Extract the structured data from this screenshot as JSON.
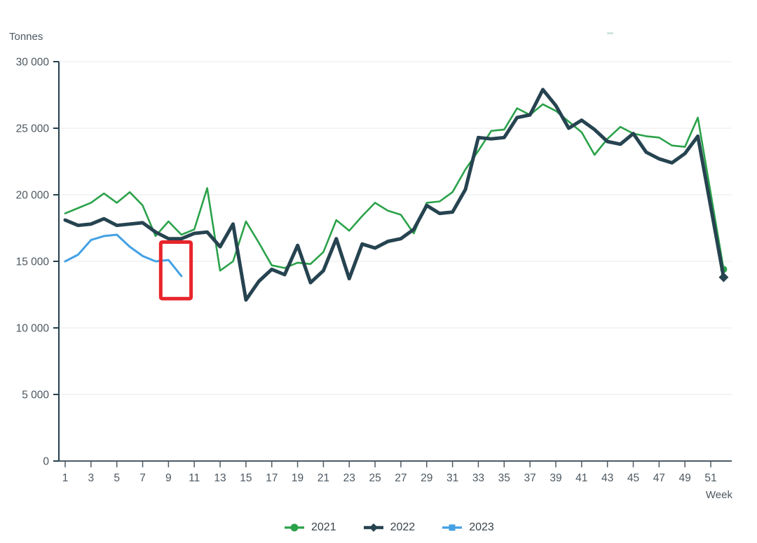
{
  "chart_data": {
    "type": "line",
    "title": "",
    "ylabel": "Tonnes",
    "xlabel": "Week",
    "ylim": [
      0,
      30000
    ],
    "yticks": [
      0,
      5000,
      10000,
      15000,
      20000,
      25000,
      30000
    ],
    "ytick_labels": [
      "0",
      "5 000",
      "10 000",
      "15 000",
      "20 000",
      "25 000",
      "30 000"
    ],
    "xticks": [
      1,
      3,
      5,
      7,
      9,
      11,
      13,
      15,
      17,
      19,
      21,
      23,
      25,
      27,
      29,
      31,
      33,
      35,
      37,
      39,
      41,
      43,
      45,
      47,
      49,
      51
    ],
    "x_range": [
      1,
      52
    ],
    "grid": true,
    "legend_position": "bottom",
    "colors": {
      "grid": "#e8e8e8",
      "y_axis": "#24404f",
      "x_axis": "#4d5a64",
      "tick_text": "#4c5760",
      "annotation": "#e8252b"
    },
    "series": [
      {
        "name": "2021",
        "color": "#2ba24a",
        "marker": "circle",
        "line_width": 2.6,
        "end_marker": true,
        "x_start": 1,
        "values": [
          18600,
          19000,
          19400,
          20100,
          19400,
          20200,
          19200,
          16900,
          18000,
          17000,
          17400,
          20500,
          14300,
          15000,
          18000,
          16400,
          14700,
          14500,
          14900,
          14800,
          15700,
          18100,
          17300,
          18400,
          19400,
          18800,
          18500,
          17100,
          19400,
          19500,
          20200,
          21900,
          23300,
          24800,
          24900,
          26500,
          26000,
          26800,
          26300,
          25500,
          24700,
          23000,
          24200,
          25100,
          24600,
          24400,
          24300,
          23700,
          23600,
          25800,
          20100,
          14400
        ]
      },
      {
        "name": "2023",
        "color": "#44a1e4",
        "marker": "square",
        "line_width": 3,
        "end_marker": false,
        "x_start": 1,
        "values": [
          15000,
          15500,
          16600,
          16900,
          17000,
          16100,
          15400,
          15000,
          15100,
          13900
        ]
      },
      {
        "name": "2022",
        "color": "#264350",
        "marker": "diamond",
        "line_width": 5,
        "end_marker": true,
        "x_start": 1,
        "values": [
          18100,
          17700,
          17800,
          18200,
          17700,
          17800,
          17900,
          17200,
          16700,
          16700,
          17100,
          17200,
          16100,
          17800,
          12100,
          13500,
          14400,
          14000,
          16200,
          13400,
          14300,
          16700,
          13700,
          16300,
          16000,
          16500,
          16700,
          17400,
          19200,
          18600,
          18700,
          20400,
          24300,
          24200,
          24300,
          25800,
          26000,
          27900,
          26700,
          25000,
          25600,
          24900,
          24000,
          23800,
          24600,
          23200,
          22700,
          22400,
          23100,
          24400,
          19100,
          13800
        ]
      }
    ],
    "legend_order": [
      "2021",
      "2022",
      "2023"
    ],
    "annotation": {
      "shape": "rect",
      "week_from": 8.4,
      "week_to": 10.75,
      "value_from": 12200,
      "value_to": 16450,
      "color": "#e8252b",
      "stroke_width": 5
    }
  }
}
